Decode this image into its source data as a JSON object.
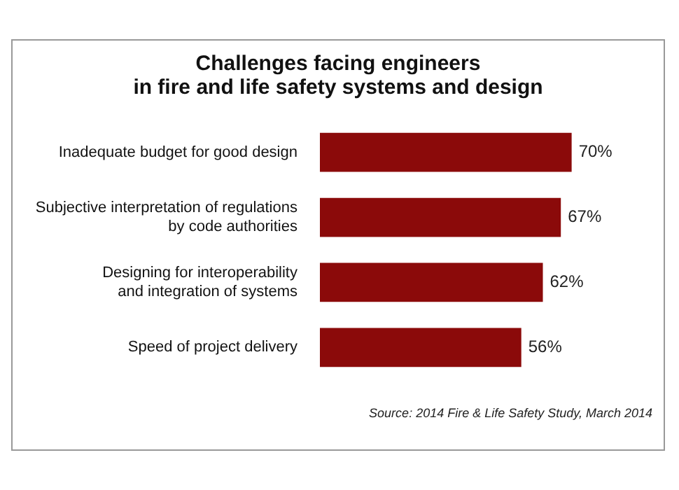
{
  "chart_data": {
    "type": "bar",
    "orientation": "horizontal",
    "title": "Challenges facing engineers\nin fire and life safety systems and design",
    "categories": [
      "Inadequate budget for good design",
      "Subjective interpretation of regulations\nby code authorities",
      "Designing for interoperability\nand integration of systems",
      "Speed of project delivery"
    ],
    "values": [
      70,
      67,
      62,
      56
    ],
    "value_labels": [
      "70%",
      "67%",
      "62%",
      "56%"
    ],
    "color": "#8b0a0a",
    "legend": false,
    "annotations": [
      "Source: 2014 Fire & Life Safety Study, March 2014"
    ]
  }
}
